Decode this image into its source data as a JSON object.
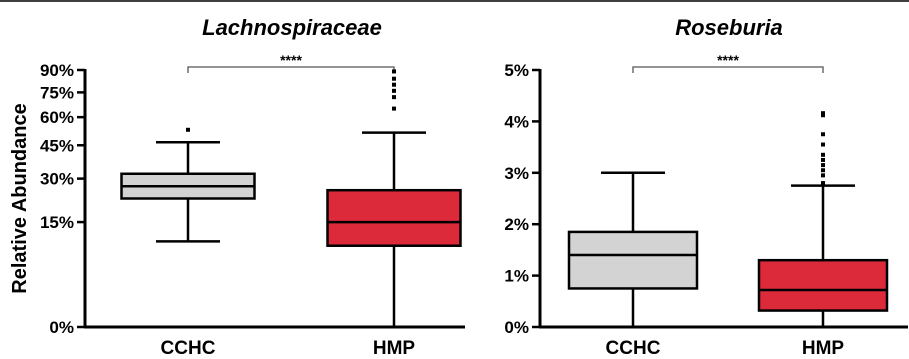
{
  "colors": {
    "cchc_fill": "#d3d3d3",
    "hmp_fill": "#dc2a3b",
    "stroke": "#000000",
    "bracket": "#555555"
  },
  "chart_data": [
    {
      "type": "box",
      "title": "Lachnospiraceae",
      "ylabel": "Relative Abundance",
      "scale": "sqrt",
      "ylim": [
        0,
        90
      ],
      "yticks": [
        0,
        15,
        30,
        45,
        60,
        75,
        90
      ],
      "ytick_labels": [
        "0%",
        "15%",
        "30%",
        "45%",
        "60%",
        "75%",
        "90%"
      ],
      "categories": [
        "CCHC",
        "HMP"
      ],
      "boxes": [
        {
          "name": "CCHC",
          "min": 10,
          "q1": 22.5,
          "median": 27,
          "q3": 32,
          "max": 46.5,
          "outliers": [
            53
          ]
        },
        {
          "name": "HMP",
          "min": 0,
          "q1": 9,
          "median": 15,
          "q3": 25.5,
          "max": 51.5,
          "outliers": [
            65,
            72,
            76,
            80,
            84,
            89
          ]
        }
      ],
      "significance": {
        "label": "****",
        "between": [
          "CCHC",
          "HMP"
        ]
      }
    },
    {
      "type": "box",
      "title": "Roseburia",
      "ylabel": "",
      "scale": "linear",
      "ylim": [
        0,
        5
      ],
      "yticks": [
        0,
        1,
        2,
        3,
        4,
        5
      ],
      "ytick_labels": [
        "0%",
        "1%",
        "2%",
        "3%",
        "4%",
        "5%"
      ],
      "categories": [
        "CCHC",
        "HMP"
      ],
      "boxes": [
        {
          "name": "CCHC",
          "min": 0,
          "q1": 0.75,
          "median": 1.4,
          "q3": 1.85,
          "max": 3.0,
          "outliers": []
        },
        {
          "name": "HMP",
          "min": 0,
          "q1": 0.32,
          "median": 0.72,
          "q3": 1.3,
          "max": 2.75,
          "outliers": [
            2.8,
            2.95,
            3.05,
            3.15,
            3.25,
            3.35,
            3.55,
            3.75,
            4.12,
            4.16
          ]
        }
      ],
      "significance": {
        "label": "****",
        "between": [
          "CCHC",
          "HMP"
        ]
      }
    }
  ]
}
